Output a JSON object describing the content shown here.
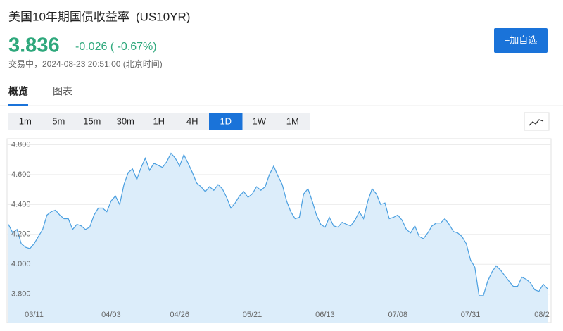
{
  "header": {
    "title": "美国10年期国债收益率",
    "symbol": "(US10YR)",
    "price": "3.836",
    "change": "-0.026 ( -0.67%)",
    "status": "交易中，2024-08-23 20:51:00 (北京时间)",
    "button": "+加自选"
  },
  "tabs": [
    "概览",
    "图表"
  ],
  "active_tab": 0,
  "intervals": [
    "1m",
    "5m",
    "15m",
    "30m",
    "1H",
    "4H",
    "1D",
    "1W",
    "1M"
  ],
  "active_interval": 6,
  "chart_data": {
    "type": "area",
    "color": "#4a9fe0",
    "fill": "#dcedfa",
    "grid": true,
    "categories": [
      null,
      null,
      null,
      null,
      null,
      null,
      "03/11",
      null,
      null,
      null,
      null,
      null,
      null,
      null,
      null,
      null,
      null,
      null,
      null,
      null,
      null,
      null,
      null,
      null,
      "04/03",
      null,
      null,
      null,
      null,
      null,
      null,
      null,
      null,
      null,
      null,
      null,
      null,
      null,
      null,
      null,
      "04/26",
      null,
      null,
      null,
      null,
      null,
      null,
      null,
      null,
      null,
      null,
      null,
      null,
      null,
      null,
      null,
      null,
      "05/21",
      null,
      null,
      null,
      null,
      null,
      null,
      null,
      null,
      null,
      null,
      null,
      null,
      null,
      null,
      null,
      null,
      "06/13",
      null,
      null,
      null,
      null,
      null,
      null,
      null,
      null,
      null,
      null,
      null,
      null,
      null,
      null,
      null,
      null,
      "07/08",
      null,
      null,
      null,
      null,
      null,
      null,
      null,
      null,
      null,
      null,
      null,
      null,
      null,
      null,
      null,
      null,
      "07/31",
      null,
      null,
      null,
      null,
      null,
      null,
      null,
      null,
      null,
      null,
      null,
      null,
      null,
      null,
      null,
      null,
      null,
      "08/2"
    ],
    "values": [
      4.267,
      4.21,
      4.233,
      4.138,
      4.114,
      4.105,
      4.138,
      4.186,
      4.233,
      4.329,
      4.352,
      4.362,
      4.329,
      4.305,
      4.305,
      4.233,
      4.267,
      4.257,
      4.233,
      4.248,
      4.329,
      4.376,
      4.376,
      4.352,
      4.424,
      4.457,
      4.4,
      4.533,
      4.614,
      4.638,
      4.567,
      4.648,
      4.71,
      4.629,
      4.676,
      4.662,
      4.648,
      4.686,
      4.743,
      4.71,
      4.657,
      4.733,
      4.676,
      4.614,
      4.543,
      4.519,
      4.486,
      4.519,
      4.495,
      4.533,
      4.505,
      4.448,
      4.376,
      4.41,
      4.457,
      4.486,
      4.448,
      4.471,
      4.519,
      4.495,
      4.519,
      4.6,
      4.657,
      4.59,
      4.533,
      4.424,
      4.352,
      4.305,
      4.314,
      4.471,
      4.505,
      4.424,
      4.329,
      4.267,
      4.248,
      4.314,
      4.257,
      4.248,
      4.281,
      4.267,
      4.257,
      4.295,
      4.352,
      4.305,
      4.424,
      4.505,
      4.471,
      4.4,
      4.41,
      4.305,
      4.314,
      4.329,
      4.295,
      4.233,
      4.21,
      4.257,
      4.186,
      4.171,
      4.21,
      4.257,
      4.276,
      4.276,
      4.305,
      4.267,
      4.219,
      4.21,
      4.186,
      4.138,
      4.029,
      3.981,
      3.79,
      3.79,
      3.886,
      3.948,
      3.99,
      3.962,
      3.924,
      3.886,
      3.852,
      3.852,
      3.914,
      3.9,
      3.876,
      3.829,
      3.819,
      3.867,
      3.836
    ],
    "ylim": [
      3.61,
      4.84
    ],
    "yticks": [
      {
        "value": 3.8,
        "label": "3.800"
      },
      {
        "value": 4.0,
        "label": "4.000"
      },
      {
        "value": 4.2,
        "label": "4.200"
      },
      {
        "value": 4.4,
        "label": "4.400"
      },
      {
        "value": 4.6,
        "label": "4.600"
      },
      {
        "value": 4.8,
        "label": "4.800"
      }
    ]
  }
}
